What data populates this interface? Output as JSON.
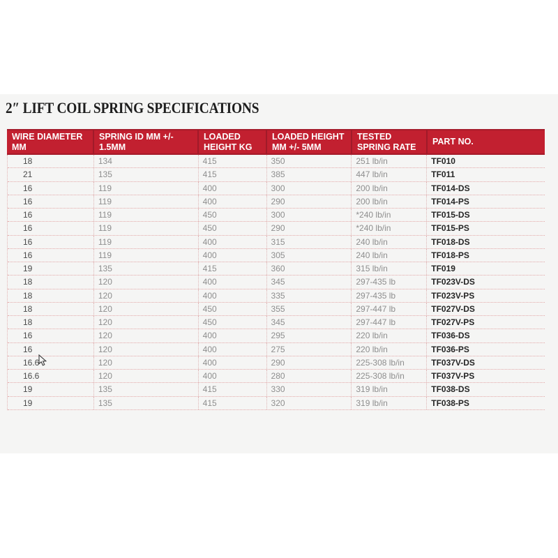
{
  "page": {
    "title": "2″ LIFT COIL SPRING SPECIFICATIONS"
  },
  "colors": {
    "header_red": "#c22030",
    "header_red_dark_edge": "#a51b2a",
    "band_background": "#f5f5f4",
    "page_background": "#ffffff",
    "row_divider_pink": "#e3a8a8",
    "body_text_gray": "#8e8e8e",
    "first_col_text": "#4a4a4a",
    "part_no_text": "#262626",
    "header_text": "#ffffff",
    "title_text": "#1d1d1d"
  },
  "table": {
    "columns": [
      {
        "label": "WIRE DIAMETER MM",
        "line1": "WIRE DIAMETER",
        "line2": "MM"
      },
      {
        "label": "SPRING ID MM +/- 1.5MM",
        "line1": "SPRING ID MM +/-",
        "line2": "1.5MM"
      },
      {
        "label": "LOADED HEIGHT KG",
        "line1": "LOADED",
        "line2": "HEIGHT KG"
      },
      {
        "label": "LOADED HEIGHT MM +/- 5MM",
        "line1": "LOADED HEIGHT",
        "line2": "MM +/- 5MM"
      },
      {
        "label": "TESTED SPRING RATE",
        "line1": "TESTED",
        "line2": "SPRING RATE"
      },
      {
        "label": "PART NO.",
        "line1": "PART NO.",
        "line2": ""
      }
    ],
    "rows": [
      [
        "18",
        "134",
        "415",
        "350",
        "251 lb/in",
        "TF010"
      ],
      [
        "21",
        "135",
        "415",
        "385",
        "447 lb/in",
        "TF011"
      ],
      [
        "16",
        "119",
        "400",
        "300",
        "200 lb/in",
        "TF014-DS"
      ],
      [
        "16",
        "119",
        "400",
        "290",
        "200 lb/in",
        "TF014-PS"
      ],
      [
        "16",
        "119",
        "450",
        "300",
        "*240 lb/in",
        "TF015-DS"
      ],
      [
        "16",
        "119",
        "450",
        "290",
        "*240 lb/in",
        "TF015-PS"
      ],
      [
        "16",
        "119",
        "400",
        "315",
        "240 lb/in",
        "TF018-DS"
      ],
      [
        "16",
        "119",
        "400",
        "305",
        "240 lb/in",
        "TF018-PS"
      ],
      [
        "19",
        "135",
        "415",
        "360",
        "315 lb/in",
        "TF019"
      ],
      [
        "18",
        "120",
        "400",
        "345",
        "297-435 lb",
        "TF023V-DS"
      ],
      [
        "18",
        "120",
        "400",
        "335",
        "297-435 lb",
        "TF023V-PS"
      ],
      [
        "18",
        "120",
        "450",
        "355",
        "297-447 lb",
        "TF027V-DS"
      ],
      [
        "18",
        "120",
        "450",
        "345",
        "297-447 lb",
        "TF027V-PS"
      ],
      [
        "16",
        "120",
        "400",
        "295",
        "220 lb/in",
        "TF036-DS"
      ],
      [
        "16",
        "120",
        "400",
        "275",
        "220 lb/in",
        "TF036-PS"
      ],
      [
        "16.6",
        "120",
        "400",
        "290",
        "225-308 lb/in",
        "TF037V-DS"
      ],
      [
        "16.6",
        "120",
        "400",
        "280",
        "225-308 lb/in",
        "TF037V-PS"
      ],
      [
        "19",
        "135",
        "415",
        "330",
        "319 lb/in",
        "TF038-DS"
      ],
      [
        "19",
        "135",
        "415",
        "320",
        "319 lb/in",
        "TF038-PS"
      ]
    ]
  },
  "cursor": {
    "icon": "mouse-arrow-cursor",
    "over_row_part_no": "TF037V-DS"
  }
}
